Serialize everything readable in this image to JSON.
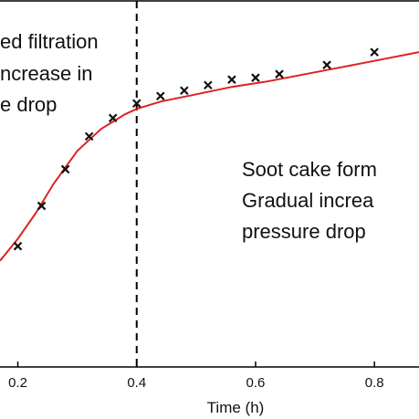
{
  "chart_data": {
    "type": "line",
    "xlabel": "Time (h)",
    "x_ticks": [
      "0.2",
      "0.4",
      "0.6",
      "0.8"
    ],
    "xlim": [
      0.17,
      0.875
    ],
    "ylim": [
      0,
      1
    ],
    "transition_x": 0.4,
    "grid": false,
    "line_color": "#e02020",
    "marker_color": "#111111",
    "annotations": {
      "left": [
        "ed filtration",
        "ncrease in",
        "e drop"
      ],
      "right": [
        "Soot cake form",
        "Gradual increa",
        "pressure drop"
      ]
    },
    "series": [
      {
        "kind": "measured",
        "marker": "x",
        "x": [
          0.2,
          0.24,
          0.28,
          0.32,
          0.36,
          0.4,
          0.44,
          0.48,
          0.52,
          0.56,
          0.6,
          0.64,
          0.72,
          0.8
        ],
        "y": [
          0.33,
          0.44,
          0.54,
          0.63,
          0.68,
          0.72,
          0.74,
          0.755,
          0.77,
          0.785,
          0.79,
          0.8,
          0.825,
          0.86
        ]
      },
      {
        "kind": "model",
        "x": [
          0.17,
          0.2,
          0.23,
          0.26,
          0.3,
          0.34,
          0.38,
          0.4,
          0.44,
          0.5,
          0.56,
          0.62,
          0.7,
          0.78,
          0.875
        ],
        "y": [
          0.29,
          0.35,
          0.42,
          0.5,
          0.59,
          0.65,
          0.69,
          0.705,
          0.725,
          0.745,
          0.765,
          0.78,
          0.805,
          0.83,
          0.86
        ]
      }
    ]
  }
}
